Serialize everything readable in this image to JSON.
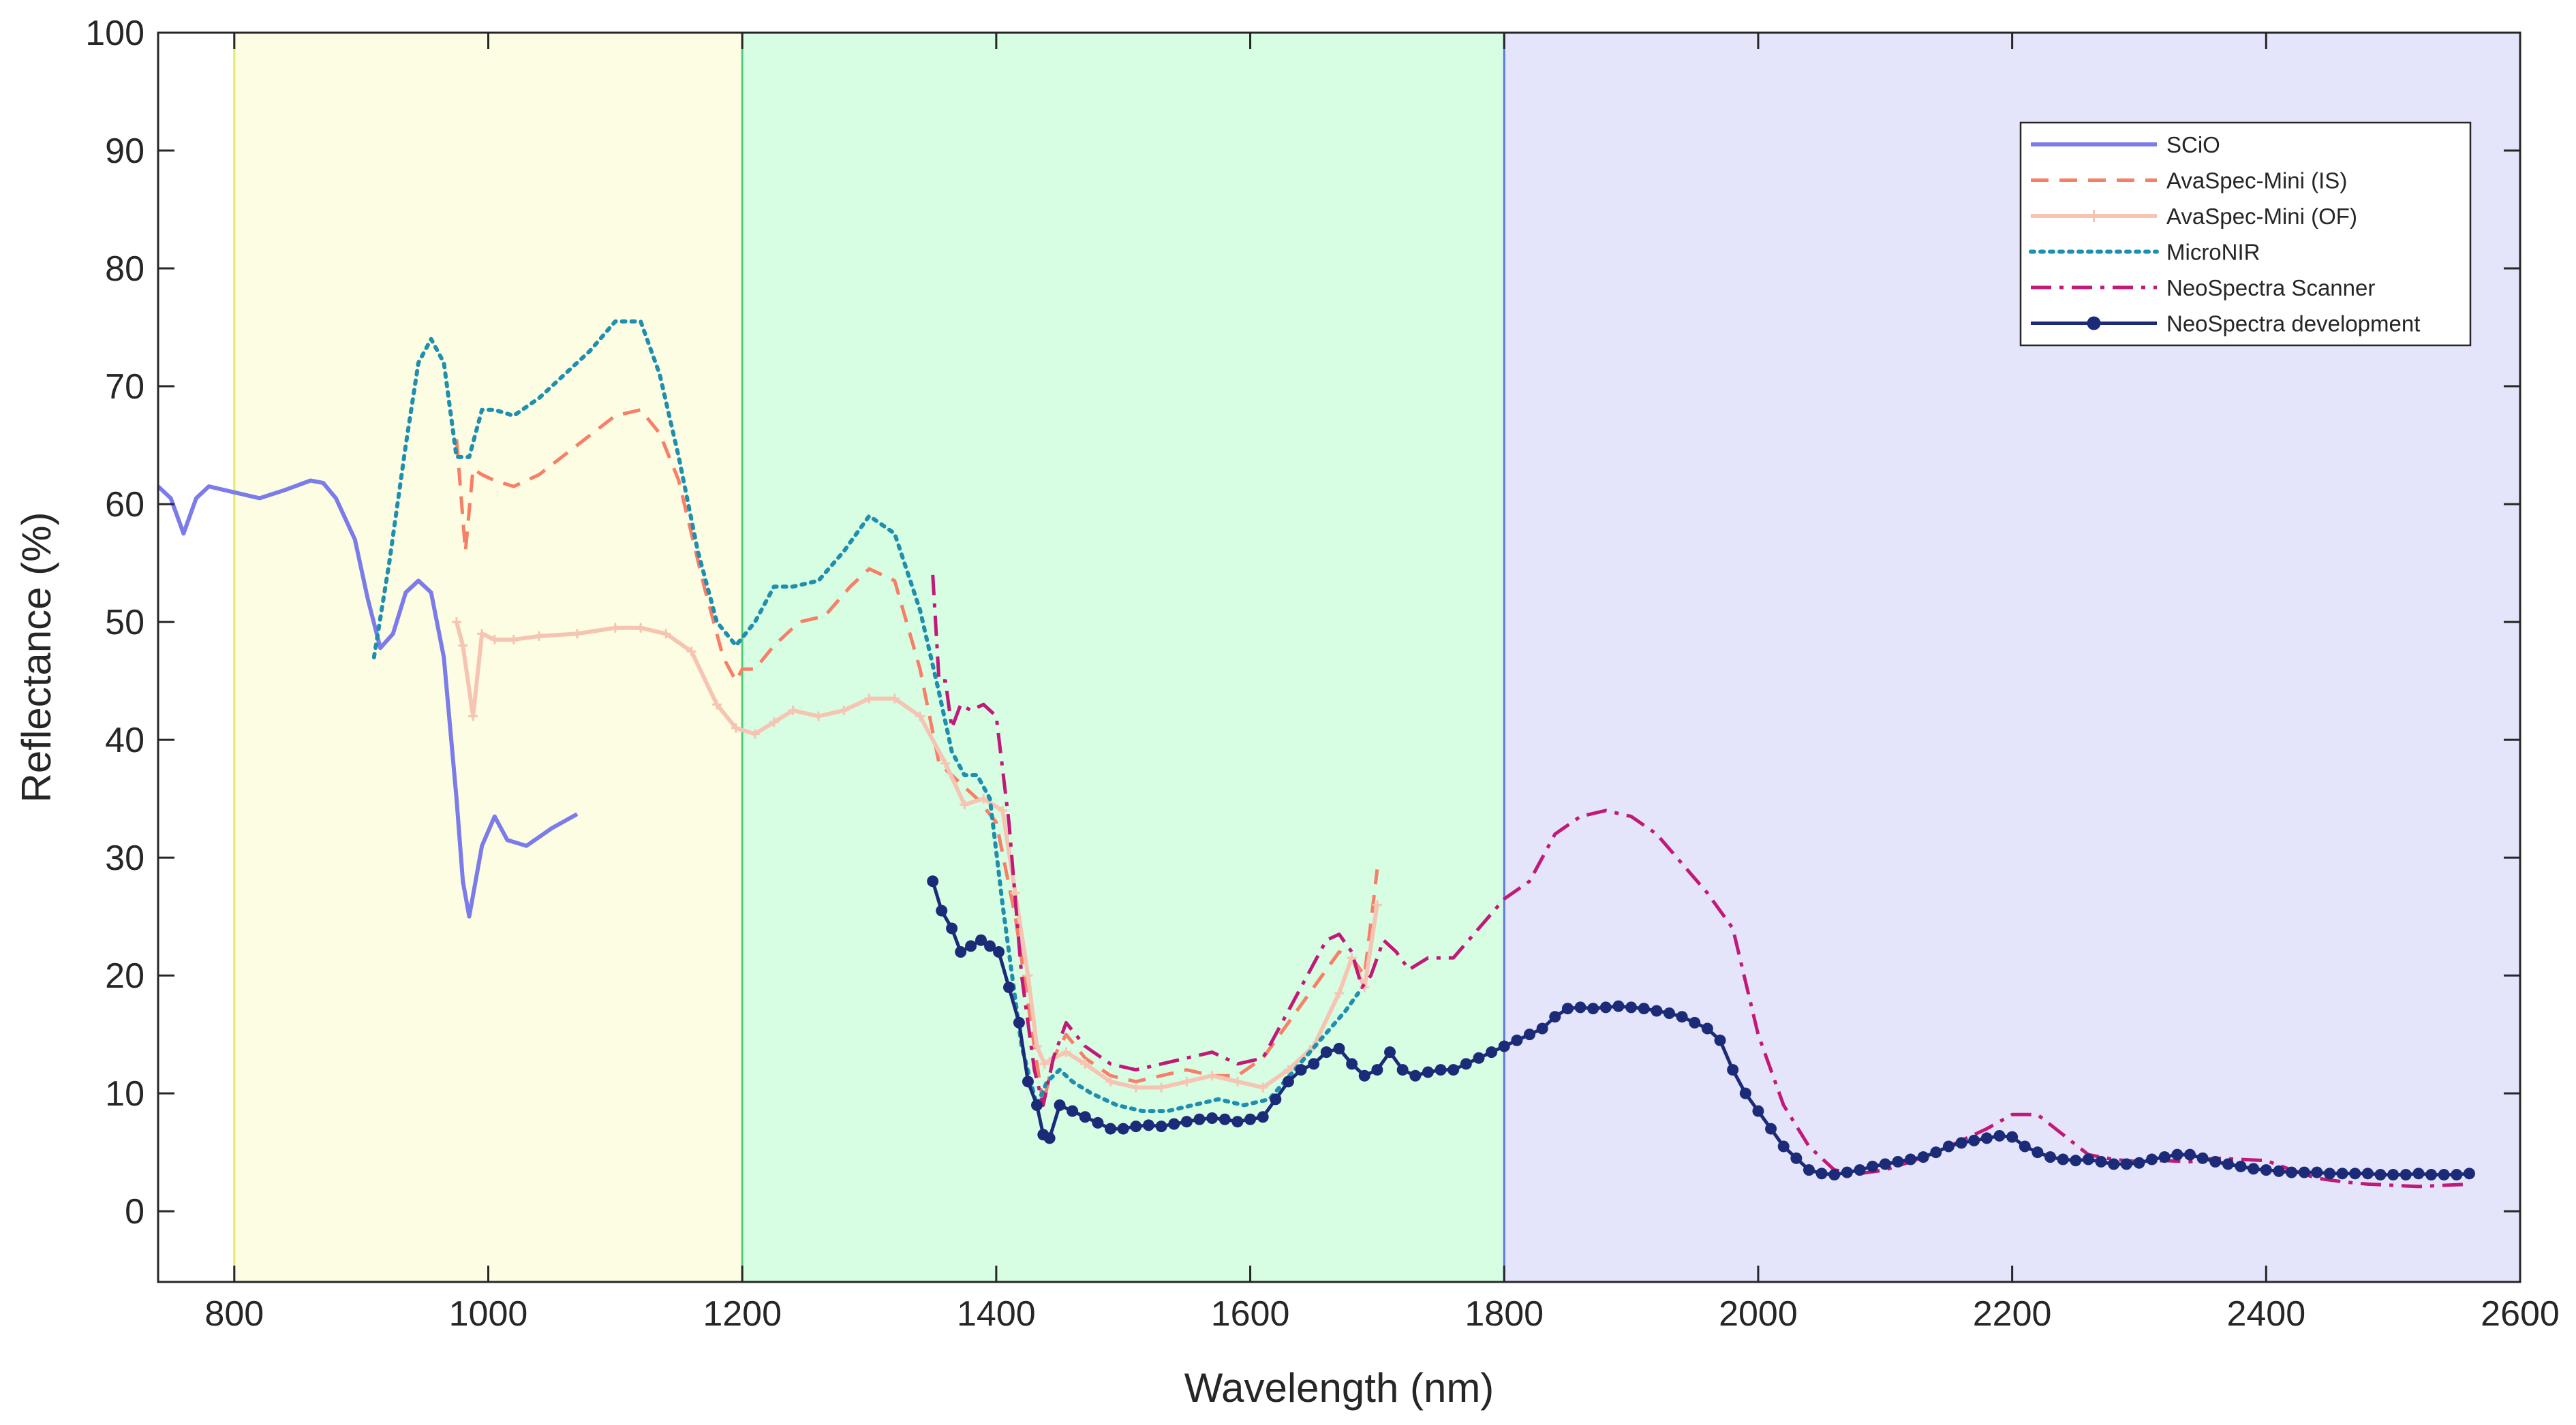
{
  "chart_data": {
    "type": "line",
    "title": "",
    "xlabel": "Wavelength (nm)",
    "ylabel": "Reflectance (%)",
    "xlim": [
      740,
      2600
    ],
    "ylim": [
      -6,
      100
    ],
    "xticks": [
      800,
      1000,
      1200,
      1400,
      1600,
      1800,
      2000,
      2200,
      2400,
      2600
    ],
    "yticks": [
      0,
      10,
      20,
      30,
      40,
      50,
      60,
      70,
      80,
      90,
      100
    ],
    "xtick_labels": [
      "800",
      "1000",
      "1200",
      "1400",
      "1600",
      "1800",
      "2000",
      "2200",
      "2400",
      "2600"
    ],
    "ytick_labels": [
      "0",
      "10",
      "20",
      "30",
      "40",
      "50",
      "60",
      "70",
      "80",
      "90",
      "100"
    ],
    "grid": false,
    "legend_position": "top-right",
    "regions": [
      {
        "x0": 800,
        "x1": 1200,
        "fill": "#fdfde3",
        "edge": "#e6e66a"
      },
      {
        "x0": 1200,
        "x1": 1800,
        "fill": "#d7fde3",
        "edge": "#4ccc7a"
      },
      {
        "x0": 1800,
        "x1": 2600,
        "fill": "#e4e4fb",
        "edge": "#5a78e0"
      }
    ],
    "series": [
      {
        "name": "SCiO",
        "color": "#7b7bea",
        "style": "solid",
        "width": 6,
        "x": [
          740,
          750,
          760,
          770,
          780,
          800,
          820,
          840,
          860,
          870,
          880,
          895,
          905,
          915,
          925,
          935,
          945,
          955,
          965,
          975,
          980,
          985,
          995,
          1005,
          1015,
          1030,
          1050,
          1070
        ],
        "y": [
          61.5,
          60.5,
          57.5,
          60.5,
          61.5,
          61,
          60.5,
          61.2,
          62,
          61.8,
          60.5,
          57,
          52,
          47.8,
          49,
          52.5,
          53.5,
          52.5,
          47,
          35,
          28,
          25,
          31,
          33.5,
          31.5,
          31,
          32.5,
          33.7
        ]
      },
      {
        "name": "AvaSpec-Mini (IS)",
        "color": "#f77f68",
        "style": "dash",
        "width": 5,
        "x": [
          975,
          982,
          988,
          995,
          1005,
          1020,
          1040,
          1070,
          1100,
          1120,
          1135,
          1150,
          1170,
          1185,
          1195,
          1200,
          1210,
          1225,
          1245,
          1265,
          1285,
          1300,
          1320,
          1340,
          1355,
          1370,
          1385,
          1400,
          1415,
          1430,
          1437,
          1445,
          1455,
          1470,
          1490,
          1510,
          1530,
          1550,
          1570,
          1590,
          1610,
          1630,
          1650,
          1670,
          1680,
          1690,
          1700
        ],
        "y": [
          65.5,
          56,
          63,
          62.5,
          62,
          61.5,
          62.5,
          65,
          67.5,
          68,
          66,
          62,
          53,
          47,
          45,
          46,
          46,
          48,
          50,
          50.5,
          53,
          54.5,
          53.5,
          46,
          38,
          36.5,
          35,
          33,
          25,
          14,
          9,
          13,
          15,
          13,
          11.5,
          11,
          11.5,
          12,
          11.5,
          11.5,
          13,
          16,
          19,
          22,
          21.5,
          20,
          29
        ]
      },
      {
        "name": "AvaSpec-Mini (OF)",
        "color": "#f6c4b2",
        "style": "solid-marker",
        "width": 6,
        "x": [
          975,
          980,
          988,
          995,
          1005,
          1020,
          1040,
          1070,
          1100,
          1120,
          1140,
          1160,
          1180,
          1195,
          1210,
          1225,
          1240,
          1260,
          1280,
          1300,
          1320,
          1340,
          1360,
          1375,
          1390,
          1405,
          1415,
          1425,
          1432,
          1438,
          1445,
          1455,
          1470,
          1490,
          1510,
          1530,
          1550,
          1570,
          1590,
          1610,
          1630,
          1650,
          1670,
          1680,
          1690,
          1700
        ],
        "y": [
          50,
          48,
          42,
          49,
          48.5,
          48.5,
          48.8,
          49,
          49.5,
          49.5,
          49,
          47.5,
          43,
          41,
          40.5,
          41.5,
          42.5,
          42,
          42.5,
          43.5,
          43.5,
          42,
          38,
          34.5,
          35,
          34,
          27,
          20,
          14,
          12.5,
          13,
          13.5,
          12.5,
          11,
          10.5,
          10.5,
          11,
          11.5,
          11,
          10.5,
          12,
          14,
          18.5,
          21.5,
          19,
          26
        ]
      },
      {
        "name": "MicroNIR",
        "color": "#1e8fae",
        "style": "dot",
        "width": 6,
        "x": [
          910,
          922,
          935,
          945,
          955,
          965,
          975,
          985,
          995,
          1005,
          1020,
          1040,
          1060,
          1080,
          1100,
          1120,
          1135,
          1150,
          1165,
          1180,
          1195,
          1210,
          1225,
          1240,
          1260,
          1280,
          1300,
          1320,
          1340,
          1355,
          1365,
          1375,
          1385,
          1395,
          1405,
          1420,
          1432,
          1440,
          1450,
          1460,
          1475,
          1495,
          1515,
          1535,
          1555,
          1575,
          1595,
          1615,
          1635,
          1655,
          1675,
          1685
        ],
        "y": [
          47,
          55,
          65,
          72,
          74,
          72,
          64,
          64,
          68,
          68,
          67.5,
          69,
          71,
          73,
          75.5,
          75.5,
          71,
          64,
          56,
          50,
          48,
          50,
          53,
          53,
          53.5,
          56,
          59,
          57.5,
          51,
          44,
          39,
          37,
          37,
          35,
          26,
          14,
          9,
          11,
          12,
          11,
          10,
          9,
          8.5,
          8.5,
          9,
          9.5,
          9,
          9.5,
          12,
          14.5,
          17,
          18.5
        ]
      },
      {
        "name": "NeoSpectra Scanner",
        "color": "#c11978",
        "style": "dashdot",
        "width": 5,
        "x": [
          1350,
          1355,
          1360,
          1365,
          1372,
          1380,
          1390,
          1400,
          1410,
          1420,
          1430,
          1437,
          1445,
          1455,
          1470,
          1490,
          1510,
          1530,
          1550,
          1570,
          1590,
          1610,
          1630,
          1650,
          1660,
          1670,
          1680,
          1688,
          1695,
          1705,
          1715,
          1725,
          1740,
          1760,
          1780,
          1800,
          1820,
          1840,
          1860,
          1880,
          1900,
          1920,
          1940,
          1960,
          1980,
          2000,
          2020,
          2040,
          2060,
          2080,
          2100,
          2120,
          2140,
          2160,
          2180,
          2200,
          2220,
          2240,
          2260,
          2280,
          2300,
          2320,
          2340,
          2360,
          2380,
          2400,
          2420,
          2440,
          2460,
          2480,
          2500,
          2520,
          2540,
          2560
        ],
        "y": [
          54,
          45,
          45,
          41,
          43,
          42.5,
          43,
          42,
          33,
          20,
          12,
          9,
          13,
          16,
          14,
          12.5,
          12,
          12.5,
          13,
          13.5,
          12.5,
          13,
          17,
          21,
          23,
          23.5,
          22,
          19,
          20,
          23,
          22,
          20.5,
          21.5,
          21.5,
          24,
          26.5,
          28,
          32,
          33.5,
          34,
          33.5,
          32,
          29.5,
          27,
          24,
          15,
          9,
          5.5,
          3.5,
          3.2,
          3.5,
          4.2,
          5,
          6,
          7,
          8.2,
          8.2,
          6.5,
          4.8,
          4.4,
          4.2,
          4.3,
          4.2,
          4.5,
          4.4,
          4.3,
          3.5,
          2.8,
          2.5,
          2.3,
          2.2,
          2.1,
          2.2,
          2.3
        ]
      },
      {
        "name": "NeoSpectra development",
        "color": "#1b2b78",
        "style": "solid-dot",
        "width": 5,
        "x": [
          1350,
          1357,
          1365,
          1372,
          1380,
          1388,
          1395,
          1402,
          1410,
          1418,
          1425,
          1432,
          1437,
          1442,
          1450,
          1460,
          1470,
          1480,
          1490,
          1500,
          1510,
          1520,
          1530,
          1540,
          1550,
          1560,
          1570,
          1580,
          1590,
          1600,
          1610,
          1620,
          1630,
          1640,
          1650,
          1660,
          1670,
          1680,
          1690,
          1700,
          1710,
          1720,
          1730,
          1740,
          1750,
          1760,
          1770,
          1780,
          1790,
          1800,
          1810,
          1820,
          1830,
          1840,
          1850,
          1860,
          1870,
          1880,
          1890,
          1900,
          1910,
          1920,
          1930,
          1940,
          1950,
          1960,
          1970,
          1980,
          1990,
          2000,
          2010,
          2020,
          2030,
          2040,
          2050,
          2060,
          2070,
          2080,
          2090,
          2100,
          2110,
          2120,
          2130,
          2140,
          2150,
          2160,
          2170,
          2180,
          2190,
          2200,
          2210,
          2220,
          2230,
          2240,
          2250,
          2260,
          2270,
          2280,
          2290,
          2300,
          2310,
          2320,
          2330,
          2340,
          2350,
          2360,
          2370,
          2380,
          2390,
          2400,
          2410,
          2420,
          2430,
          2440,
          2450,
          2460,
          2470,
          2480,
          2490,
          2500,
          2510,
          2520,
          2530,
          2540,
          2550,
          2560
        ],
        "y": [
          28,
          25.5,
          24,
          22,
          22.5,
          23,
          22.5,
          22,
          19,
          16,
          11,
          9,
          6.5,
          6.2,
          9,
          8.5,
          8,
          7.5,
          7,
          7,
          7.2,
          7.3,
          7.2,
          7.4,
          7.6,
          7.8,
          7.9,
          7.8,
          7.6,
          7.8,
          8,
          9.5,
          11,
          12,
          12.5,
          13.5,
          13.8,
          12.5,
          11.5,
          12,
          13.5,
          12,
          11.5,
          11.8,
          12,
          12,
          12.5,
          13,
          13.5,
          14,
          14.5,
          15,
          15.5,
          16.5,
          17.2,
          17.3,
          17.2,
          17.3,
          17.4,
          17.3,
          17.2,
          17,
          16.8,
          16.5,
          16,
          15.5,
          14.5,
          12,
          10,
          8.5,
          7,
          5.5,
          4.5,
          3.5,
          3.2,
          3.1,
          3.3,
          3.5,
          3.8,
          4,
          4.2,
          4.4,
          4.6,
          5,
          5.5,
          5.8,
          6,
          6.2,
          6.4,
          6.3,
          5.5,
          5,
          4.6,
          4.4,
          4.3,
          4.4,
          4.2,
          4,
          4,
          4.1,
          4.4,
          4.6,
          4.8,
          4.8,
          4.5,
          4.2,
          4,
          3.8,
          3.6,
          3.5,
          3.4,
          3.3,
          3.3,
          3.3,
          3.2,
          3.2,
          3.2,
          3.2,
          3.1,
          3.1,
          3.1,
          3.2,
          3.1,
          3.1,
          3.1,
          3.2
        ]
      }
    ]
  }
}
